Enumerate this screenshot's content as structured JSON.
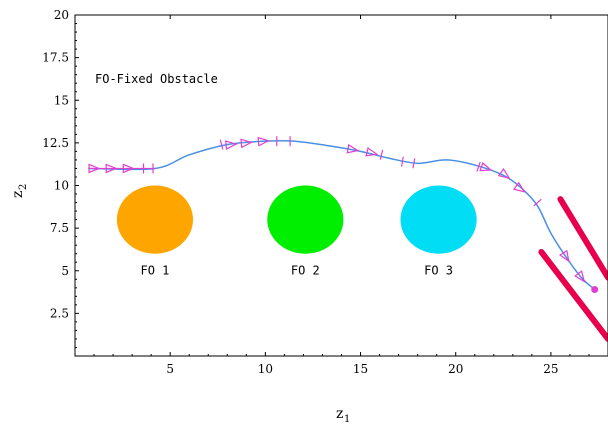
{
  "chart_data": {
    "type": "scatter",
    "title": "",
    "xlabel": "z",
    "xlabel_sub": "1",
    "ylabel": "z",
    "ylabel_sub": "2",
    "xlim": [
      0,
      28
    ],
    "ylim": [
      0,
      20
    ],
    "x_ticks": [
      "5",
      "10",
      "15",
      "20",
      "25"
    ],
    "y_ticks": [
      "2.5",
      "5",
      "7.5",
      "10",
      "12.5",
      "15",
      "17.5",
      "20"
    ],
    "grid": false,
    "annotation": "FO-Fixed Obstacle",
    "obstacles": [
      {
        "label": "FO 1",
        "center": [
          4.2,
          8.0
        ],
        "radius": 2.0,
        "color": "#FFA500"
      },
      {
        "label": "FO 2",
        "center": [
          12.1,
          8.0
        ],
        "radius": 2.0,
        "color": "#00EE00"
      },
      {
        "label": "FO 3",
        "center": [
          19.1,
          8.0
        ],
        "radius": 2.0,
        "color": "#00DDF5"
      }
    ],
    "path": {
      "color": "#4A90E2",
      "points": [
        [
          0.7,
          11.0
        ],
        [
          4.2,
          11.0
        ],
        [
          6.0,
          11.8
        ],
        [
          8.0,
          12.4
        ],
        [
          10.0,
          12.6
        ],
        [
          11.5,
          12.6
        ],
        [
          13.5,
          12.3
        ],
        [
          15.0,
          12.0
        ],
        [
          16.5,
          11.6
        ],
        [
          18.0,
          11.3
        ],
        [
          19.5,
          11.5
        ],
        [
          21.0,
          11.2
        ],
        [
          22.5,
          10.6
        ],
        [
          23.5,
          9.8
        ],
        [
          24.3,
          8.8
        ],
        [
          25.0,
          7.2
        ],
        [
          25.8,
          5.8
        ],
        [
          26.6,
          4.6
        ],
        [
          27.3,
          3.9
        ]
      ]
    },
    "markers": {
      "color": "#E040D0",
      "triangles": [
        [
          1.0,
          11.0
        ],
        [
          1.9,
          11.0
        ],
        [
          2.8,
          11.0
        ],
        [
          8.2,
          12.4
        ],
        [
          9.0,
          12.5
        ],
        [
          9.9,
          12.6
        ],
        [
          14.6,
          12.1
        ],
        [
          15.6,
          11.9
        ],
        [
          21.6,
          11.0
        ],
        [
          22.6,
          10.6
        ],
        [
          23.4,
          9.8
        ],
        [
          25.8,
          5.8
        ],
        [
          26.6,
          4.6
        ]
      ],
      "crosses": [
        [
          3.6,
          11.0
        ],
        [
          4.1,
          11.0
        ],
        [
          7.7,
          12.4
        ],
        [
          10.6,
          12.6
        ],
        [
          11.3,
          12.6
        ],
        [
          16.1,
          11.8
        ],
        [
          17.2,
          11.4
        ],
        [
          17.8,
          11.3
        ],
        [
          21.2,
          11.1
        ],
        [
          24.3,
          9.0
        ]
      ],
      "goal": [
        27.3,
        3.9
      ]
    },
    "walls": {
      "color": "#E8004D",
      "segments": [
        [
          [
            25.5,
            9.2
          ],
          [
            28.0,
            4.6
          ]
        ],
        [
          [
            24.5,
            6.1
          ],
          [
            28.0,
            1.0
          ]
        ]
      ]
    }
  }
}
